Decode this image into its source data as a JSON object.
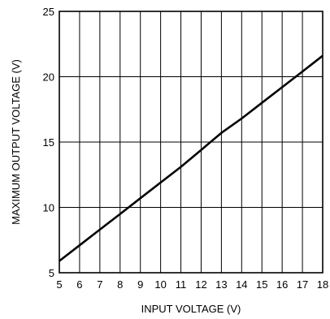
{
  "chart_data": {
    "type": "line",
    "title": "",
    "xlabel": "INPUT VOLTAGE (V)",
    "ylabel": "MAXIMUM  OUTPUT VOLTAGE (V)",
    "xlim": [
      5,
      18
    ],
    "ylim": [
      5,
      25
    ],
    "x_ticks": [
      5,
      6,
      7,
      8,
      9,
      10,
      11,
      12,
      13,
      14,
      15,
      16,
      17,
      18
    ],
    "y_ticks": [
      5,
      10,
      15,
      20,
      25
    ],
    "grid": true,
    "series": [
      {
        "x": [
          5,
          6,
          7,
          8,
          9,
          10,
          11,
          12,
          13,
          14,
          15,
          16,
          17,
          18
        ],
        "y": [
          5.9,
          7.1,
          8.3,
          9.5,
          10.7,
          11.9,
          13.1,
          14.4,
          15.7,
          16.8,
          18.0,
          19.2,
          20.4,
          21.6
        ]
      }
    ],
    "colors": {
      "line": "#000000",
      "grid": "#000000",
      "frame": "#000000"
    }
  }
}
